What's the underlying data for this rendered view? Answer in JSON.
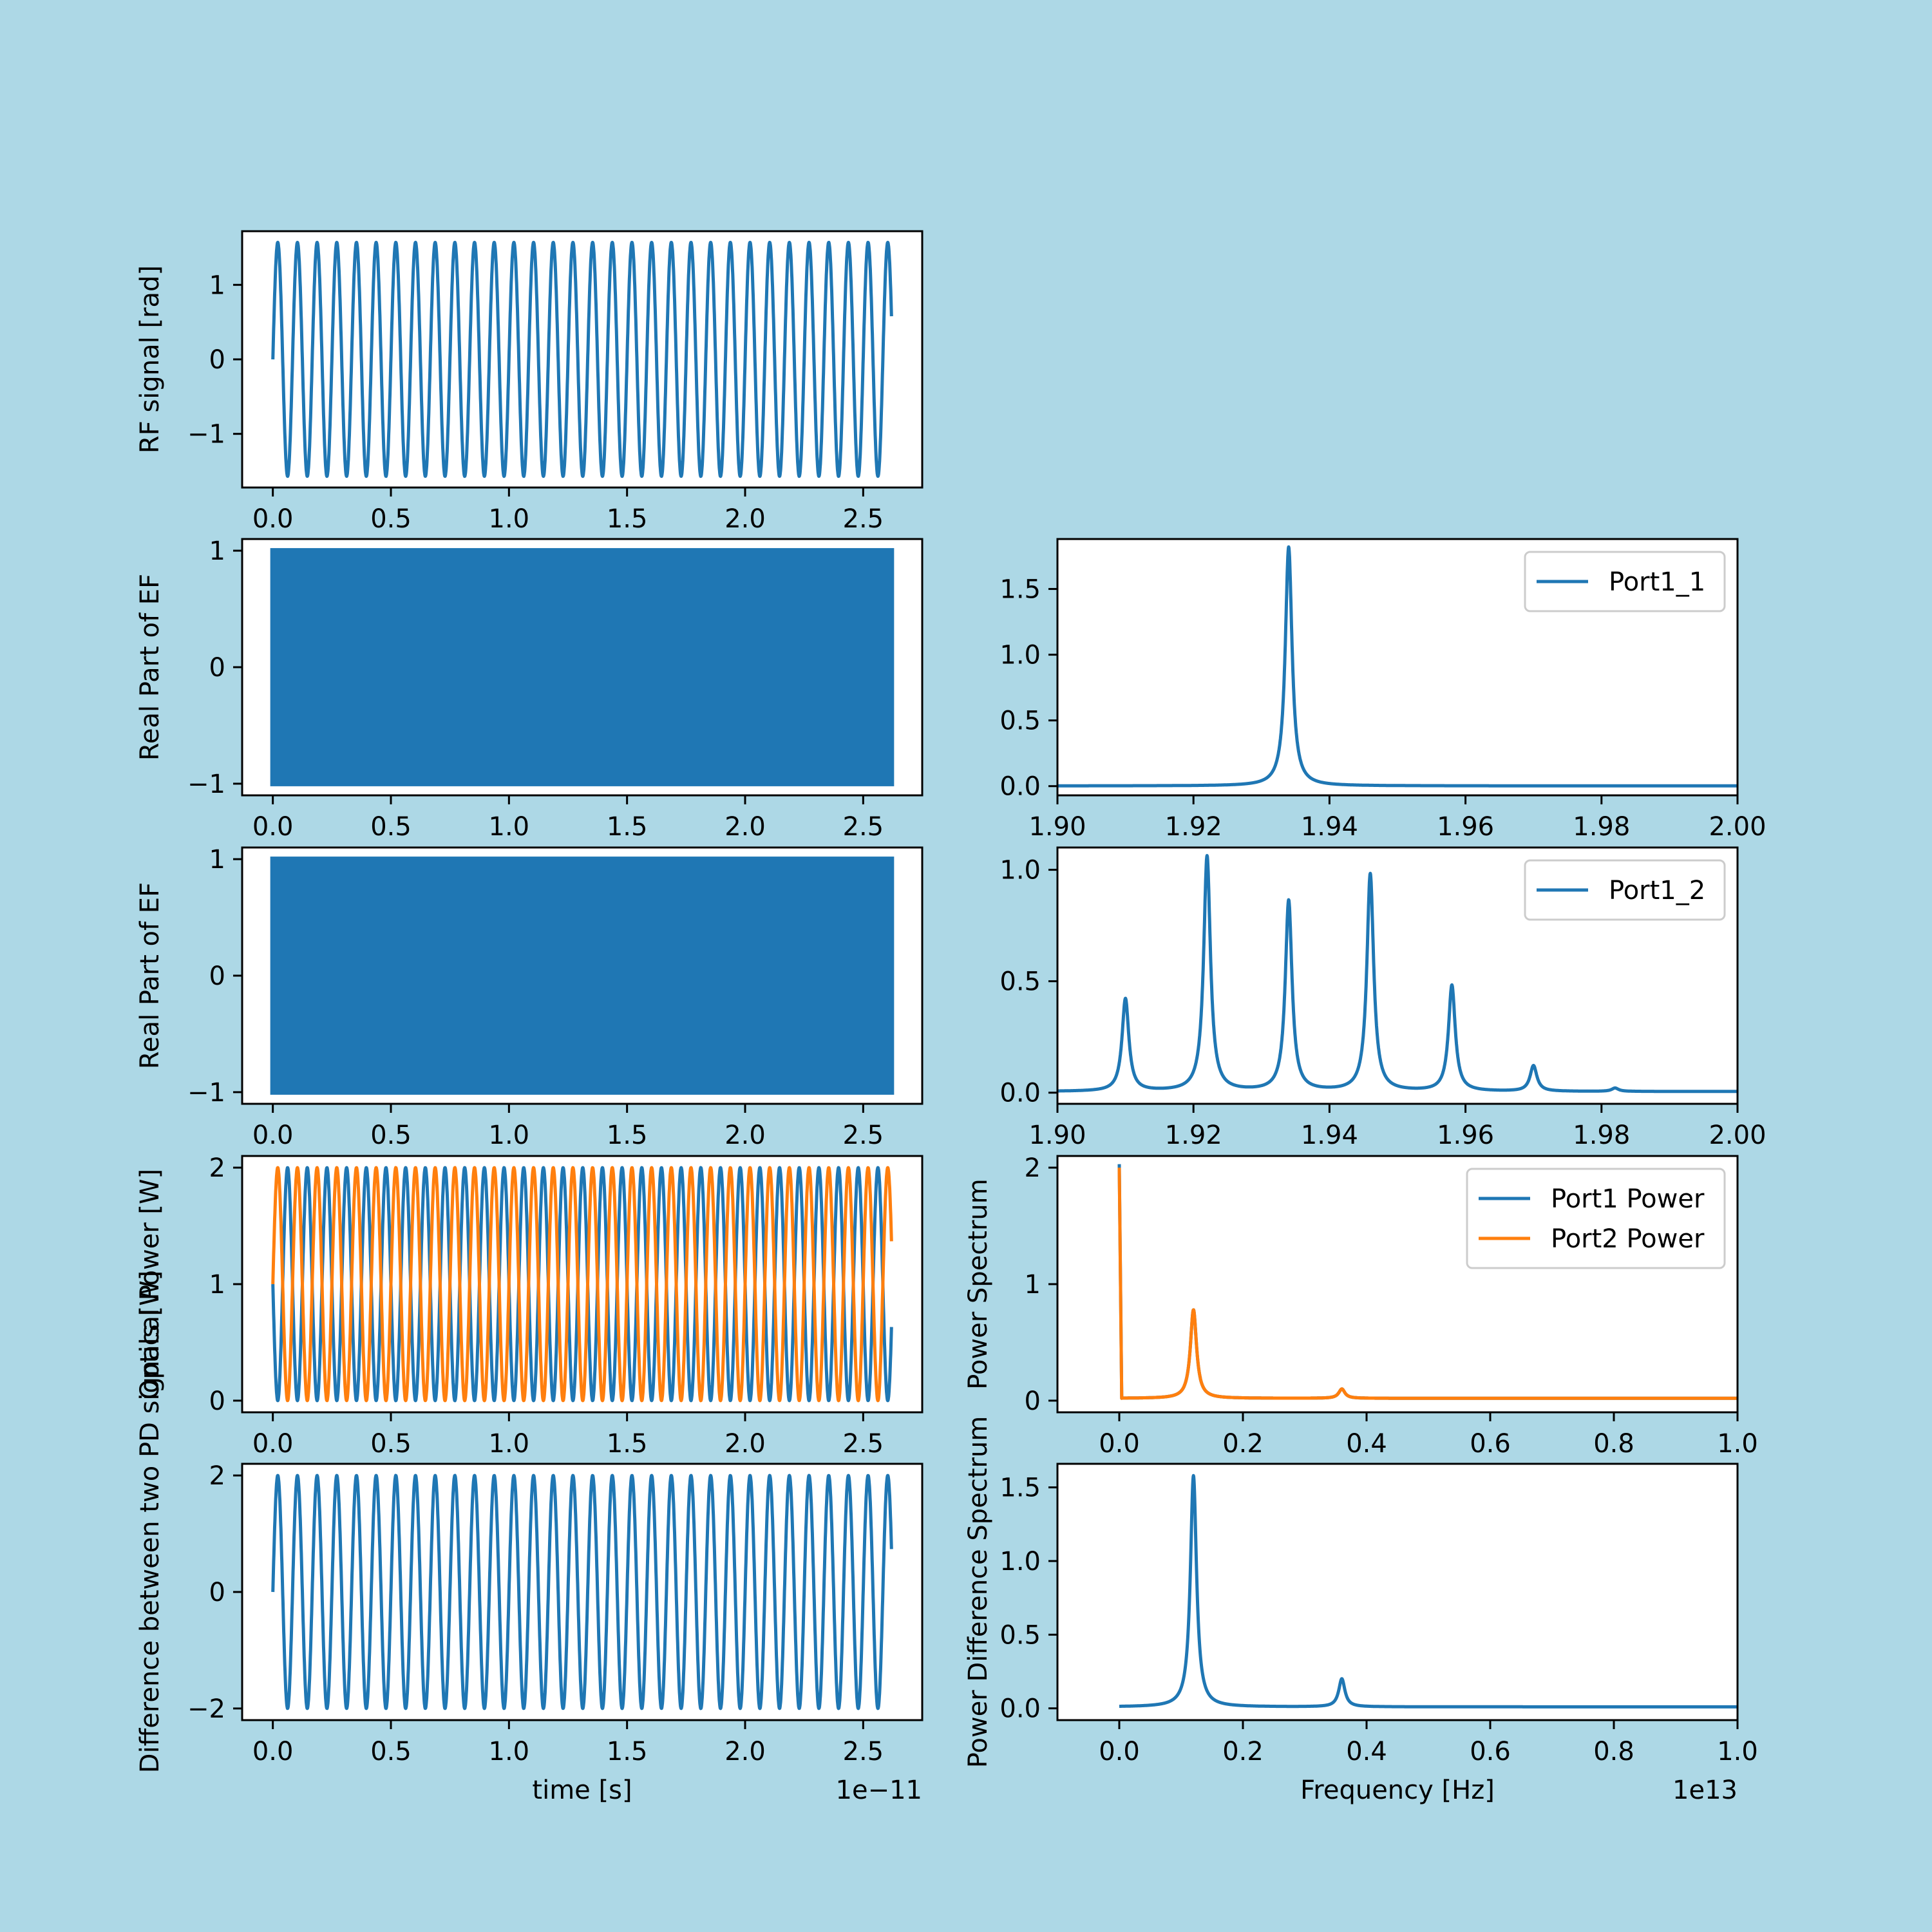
{
  "figure": {
    "background": "#add8e6"
  },
  "chart_data": [
    {
      "id": "rf",
      "type": "line",
      "ylabel": "RF signal [rad]",
      "xlabel": "",
      "xticks": [
        "0.0",
        "0.5",
        "1.0",
        "1.5",
        "2.0",
        "2.5"
      ],
      "yticks": [
        "−1",
        "0",
        "1"
      ],
      "xlim": [
        -1.3e-12,
        2.75e-11
      ],
      "ylim": [
        -1.72,
        1.72
      ],
      "series": [
        {
          "color": "#1f77b4",
          "wave": {
            "kind": "sine",
            "amp": 1.57,
            "freq": 1200000000000.0,
            "phase": 0,
            "offset": 0,
            "t_end": 2.62e-11
          }
        }
      ]
    },
    {
      "id": "ef1",
      "type": "line",
      "ylabel": "Real Part of EF",
      "xlabel": "",
      "xticks": [
        "0.0",
        "0.5",
        "1.0",
        "1.5",
        "2.0",
        "2.5"
      ],
      "yticks": [
        "−1",
        "0",
        "1"
      ],
      "xlim": [
        -1.3e-12,
        2.75e-11
      ],
      "ylim": [
        -1.1,
        1.1
      ],
      "series": [
        {
          "color": "#1f77b4",
          "filled_band": {
            "t_start": 0,
            "t_end": 2.62e-11,
            "min": -1,
            "max": 1
          }
        }
      ]
    },
    {
      "id": "spec1",
      "type": "line",
      "xlabel": "",
      "ylabel": "",
      "xticks": [
        "1.90",
        "1.92",
        "1.94",
        "1.96",
        "1.98",
        "2.00"
      ],
      "yticks": [
        "0.0",
        "0.5",
        "1.0",
        "1.5"
      ],
      "xlim": [
        1.9,
        2.0
      ],
      "ylim": [
        -0.07,
        1.88
      ],
      "legend": {
        "placement": "top-right",
        "entries": [
          {
            "label": "Port1_1",
            "color": "#1f77b4"
          }
        ]
      },
      "series": [
        {
          "name": "Port1_1",
          "color": "#1f77b4",
          "peaks": [
            {
              "x": 1.934,
              "h": 1.82
            }
          ],
          "width": 0.0006,
          "base": 0.002
        }
      ]
    },
    {
      "id": "ef2",
      "type": "line",
      "ylabel": "Real Part of EF",
      "xlabel": "",
      "xticks": [
        "0.0",
        "0.5",
        "1.0",
        "1.5",
        "2.0",
        "2.5"
      ],
      "yticks": [
        "−1",
        "0",
        "1"
      ],
      "xlim": [
        -1.3e-12,
        2.75e-11
      ],
      "ylim": [
        -1.1,
        1.1
      ],
      "series": [
        {
          "color": "#1f77b4",
          "filled_band": {
            "t_start": 0,
            "t_end": 2.62e-11,
            "min": -1,
            "max": 1
          }
        }
      ]
    },
    {
      "id": "spec2",
      "type": "line",
      "xlabel": "",
      "ylabel": "",
      "xticks": [
        "1.90",
        "1.92",
        "1.94",
        "1.96",
        "1.98",
        "2.00"
      ],
      "yticks": [
        "0.0",
        "0.5",
        "1.0"
      ],
      "xlim": [
        1.9,
        2.0
      ],
      "ylim": [
        -0.05,
        1.1
      ],
      "legend": {
        "placement": "top-right",
        "entries": [
          {
            "label": "Port1_2",
            "color": "#1f77b4"
          }
        ]
      },
      "series": [
        {
          "name": "Port1_2",
          "color": "#1f77b4",
          "peaks": [
            {
              "x": 1.91,
              "h": 0.42
            },
            {
              "x": 1.922,
              "h": 1.06
            },
            {
              "x": 1.934,
              "h": 0.86
            },
            {
              "x": 1.946,
              "h": 0.98
            },
            {
              "x": 1.958,
              "h": 0.48
            },
            {
              "x": 1.97,
              "h": 0.12
            },
            {
              "x": 1.982,
              "h": 0.02
            }
          ],
          "width": 0.0006,
          "base": 0.005
        }
      ]
    },
    {
      "id": "power",
      "type": "line",
      "ylabel": "Optical Power [W]",
      "xlabel": "",
      "xticks": [
        "0.0",
        "0.5",
        "1.0",
        "1.5",
        "2.0",
        "2.5"
      ],
      "yticks": [
        "0",
        "1",
        "2"
      ],
      "xlim": [
        -1.3e-12,
        2.75e-11
      ],
      "ylim": [
        -0.1,
        2.1
      ],
      "series": [
        {
          "color": "#1f77b4",
          "wave": {
            "kind": "cos2",
            "amp": 2,
            "freq": 1200000000000.0,
            "phase": 0,
            "offset": 0,
            "t_end": 2.62e-11
          }
        },
        {
          "color": "#ff7f0e",
          "wave": {
            "kind": "sin2",
            "amp": 2,
            "freq": 1200000000000.0,
            "phase": 0,
            "offset": 0,
            "t_end": 2.62e-11
          }
        }
      ]
    },
    {
      "id": "pspec",
      "type": "line",
      "ylabel": "Power Spectrum",
      "xlabel": "",
      "xticks": [
        "0.0",
        "0.2",
        "0.4",
        "0.6",
        "0.8",
        "1.0"
      ],
      "yticks": [
        "0",
        "1",
        "2"
      ],
      "xlim": [
        -0.1,
        1.0
      ],
      "ylim": [
        -0.1,
        2.1
      ],
      "legend": {
        "placement": "top-right",
        "entries": [
          {
            "label": "Port1 Power",
            "color": "#1f77b4"
          },
          {
            "label": "Port2 Power",
            "color": "#ff7f0e"
          }
        ]
      },
      "series": [
        {
          "name": "Port1 Power",
          "color": "#1f77b4",
          "dc": 2.03,
          "peaks": [
            {
              "x": 0.12,
              "h": 0.78
            },
            {
              "x": 0.36,
              "h": 0.1
            }
          ],
          "width": 0.006,
          "base": 0.02
        },
        {
          "name": "Port2 Power",
          "color": "#ff7f0e",
          "dc": 2.0,
          "peaks": [
            {
              "x": 0.12,
              "h": 0.78
            },
            {
              "x": 0.36,
              "h": 0.1
            }
          ],
          "width": 0.006,
          "base": 0.02
        }
      ]
    },
    {
      "id": "diff",
      "type": "line",
      "ylabel": "Difference between two PD signals [W]",
      "xlabel": "time [s]",
      "offset_text": "1e−11",
      "xticks": [
        "0.0",
        "0.5",
        "1.0",
        "1.5",
        "2.0",
        "2.5"
      ],
      "yticks": [
        "−2",
        "0",
        "2"
      ],
      "xlim": [
        -1.3e-12,
        2.75e-11
      ],
      "ylim": [
        -2.2,
        2.2
      ],
      "series": [
        {
          "color": "#1f77b4",
          "wave": {
            "kind": "sine",
            "amp": 2,
            "freq": 1200000000000.0,
            "phase": 0,
            "offset": 0,
            "t_end": 2.62e-11
          }
        }
      ]
    },
    {
      "id": "dspec",
      "type": "line",
      "ylabel": "Power Difference Spectrum",
      "xlabel": "Frequency [Hz]",
      "offset_text": "1e13",
      "xticks": [
        "0.0",
        "0.2",
        "0.4",
        "0.6",
        "0.8",
        "1.0"
      ],
      "yticks": [
        "0.0",
        "0.5",
        "1.0",
        "1.5"
      ],
      "xlim": [
        -0.1,
        1.0
      ],
      "ylim": [
        -0.08,
        1.66
      ],
      "series": [
        {
          "color": "#1f77b4",
          "peaks": [
            {
              "x": 0.12,
              "h": 1.58
            },
            {
              "x": 0.36,
              "h": 0.2
            }
          ],
          "width": 0.006,
          "base": 0.01,
          "start": 0.0
        }
      ]
    }
  ]
}
